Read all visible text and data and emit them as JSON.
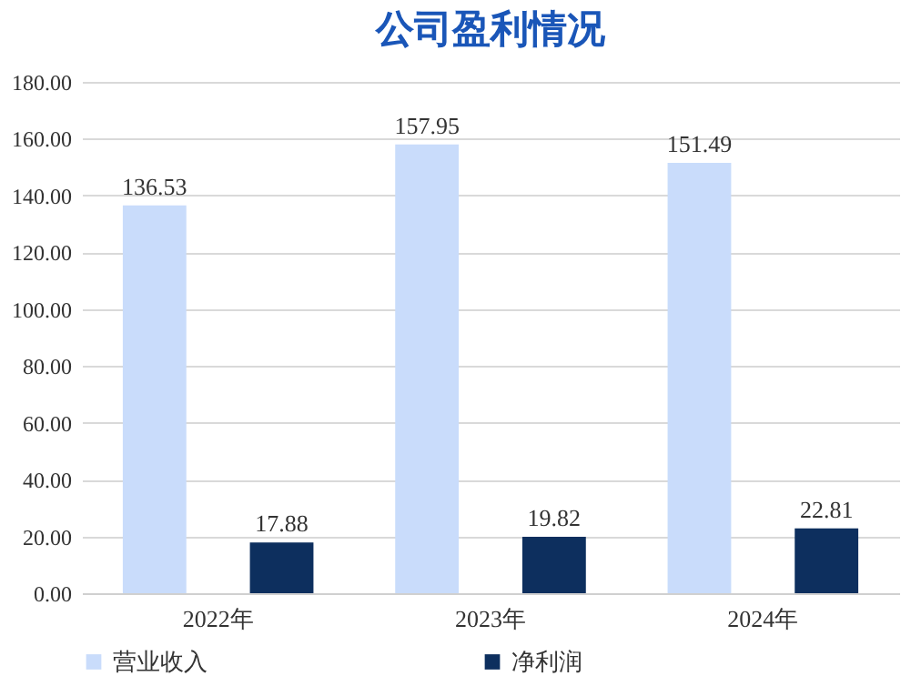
{
  "chart_data": {
    "type": "bar",
    "title": "公司盈利情况",
    "categories": [
      "2022年",
      "2023年",
      "2024年"
    ],
    "series": [
      {
        "name": "营业收入",
        "color": "#c9dcfb",
        "values": [
          136.53,
          157.95,
          151.49
        ]
      },
      {
        "name": "净利润",
        "color": "#0d2f5e",
        "values": [
          17.88,
          19.82,
          22.81
        ]
      }
    ],
    "ylim": [
      0,
      180
    ],
    "yticks": [
      {
        "value": 0,
        "label": "0.00"
      },
      {
        "value": 20,
        "label": "20.00"
      },
      {
        "value": 40,
        "label": "40.00"
      },
      {
        "value": 60,
        "label": "60.00"
      },
      {
        "value": 80,
        "label": "80.00"
      },
      {
        "value": 100,
        "label": "100.00"
      },
      {
        "value": 120,
        "label": "120.00"
      },
      {
        "value": 140,
        "label": "140.00"
      },
      {
        "value": 160,
        "label": "160.00"
      },
      {
        "value": 180,
        "label": "180.00"
      }
    ],
    "grid": "y",
    "legend": "bottom",
    "data_labels": true
  }
}
